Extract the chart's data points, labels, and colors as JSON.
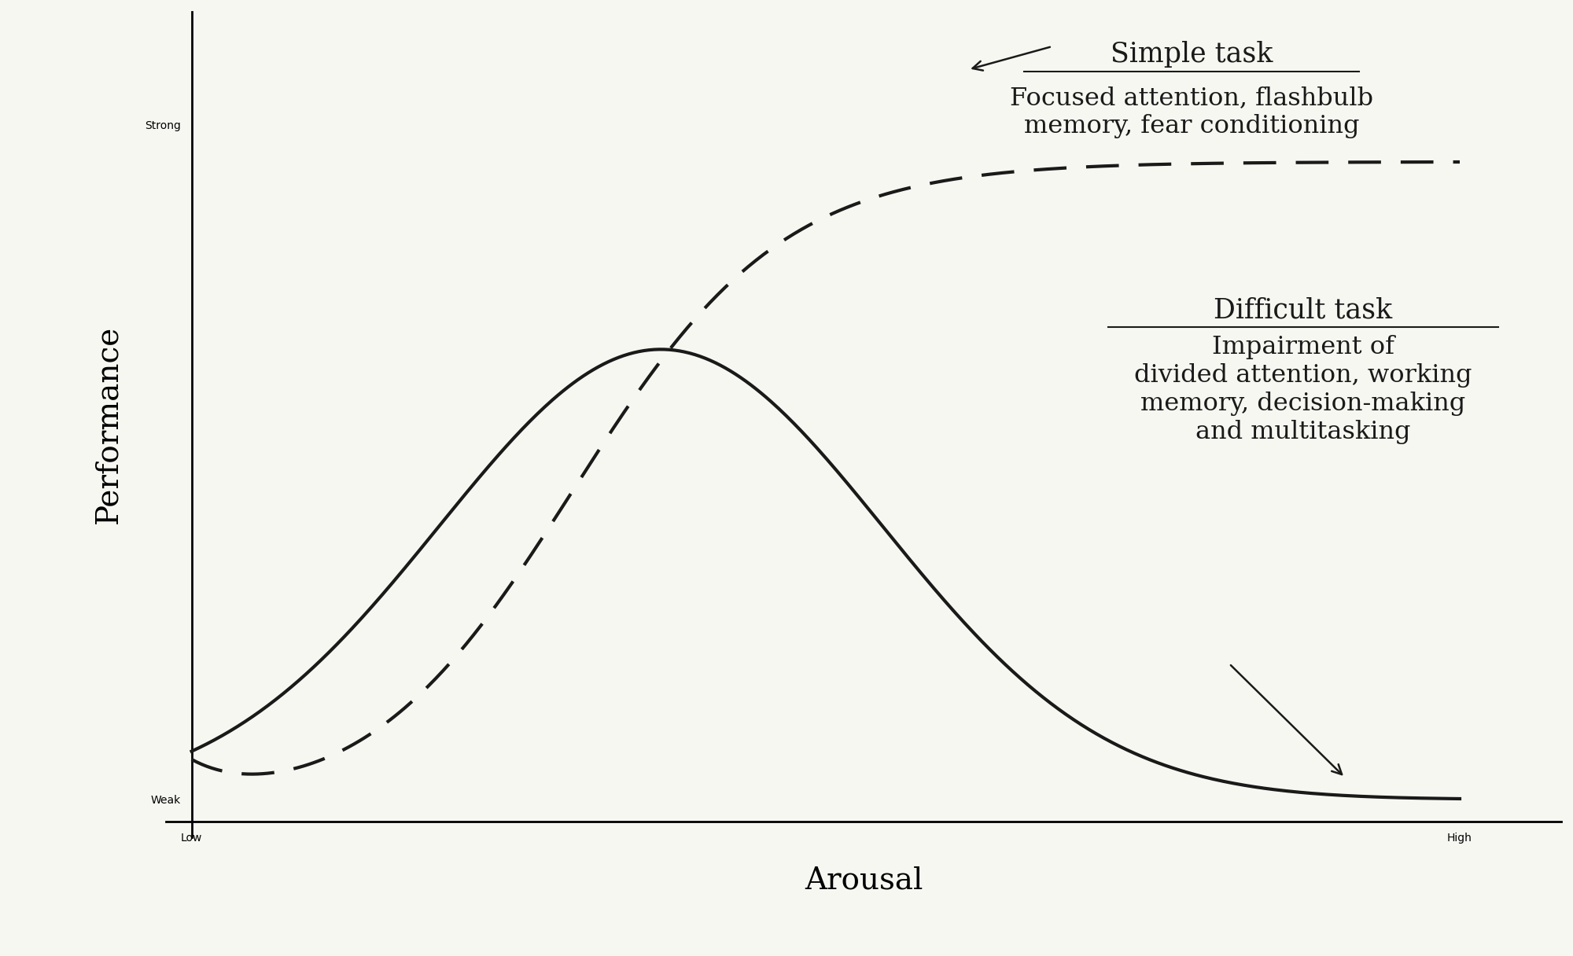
{
  "xlabel": "Arousal",
  "ylabel": "Performance",
  "ytick_labels": [
    "Weak",
    "",
    "Strong"
  ],
  "xtick_labels": [
    "Low",
    "High"
  ],
  "background_color": "#f7f7f2",
  "line_color": "#1a1a1a",
  "simple_task_label": "Simple task",
  "simple_task_desc": "Focused attention, flashbulb\nmemory, fear conditioning",
  "difficult_task_label": "Difficult task",
  "difficult_task_desc": "Impairment of\ndivided attention, working\nmemory, decision-making\nand multitasking",
  "font_size_axis_label": 28,
  "font_size_tick_label": 26,
  "font_size_annotation": 23,
  "font_size_annotation_title": 25,
  "line_width": 3.0
}
